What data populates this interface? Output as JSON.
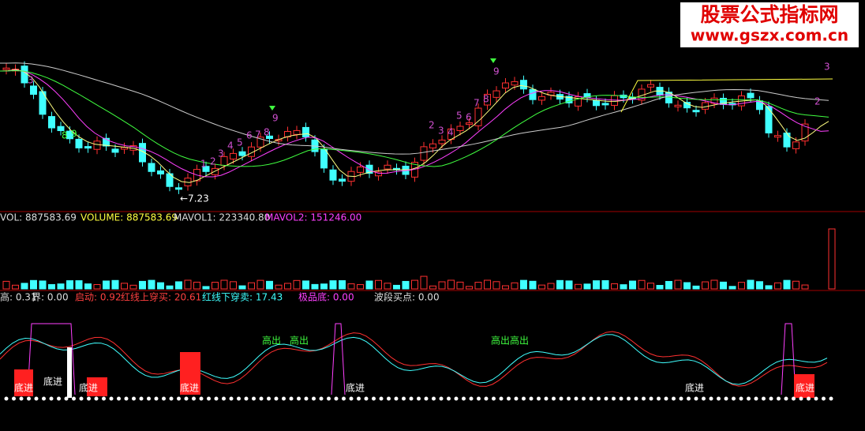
{
  "logo": {
    "name": "股票公式指标网",
    "url": "www.gszx.com.cn"
  },
  "price_panel": {
    "annotations": [
      "3",
      "8",
      "9",
      "1",
      "2",
      "3",
      "4",
      "5",
      "6",
      "7",
      "8",
      "9",
      "2",
      "3",
      "4",
      "5",
      "6",
      "7",
      "8",
      "9",
      "2",
      "3"
    ],
    "low_label": "←7.23"
  },
  "volume_panel": {
    "legend": [
      "VOL: 887583.69",
      "VOLUME: 887583.69",
      "MAVOL1: 223340.80",
      "MAVOL2: 151246.00"
    ]
  },
  "indicator_panel": {
    "legend": [
      "高: 0.31",
      "界: 0.00",
      "启动: 0.92",
      "红线上穿买: 20.61",
      "红线下穿卖: 17.43",
      "极品底: 0.00",
      "波段买点: 0.00"
    ],
    "signals": [
      "高出",
      "高出",
      "高出高出",
      "底进",
      "底进",
      "底进",
      "底进",
      "底进",
      "底进",
      "底进"
    ]
  }
}
